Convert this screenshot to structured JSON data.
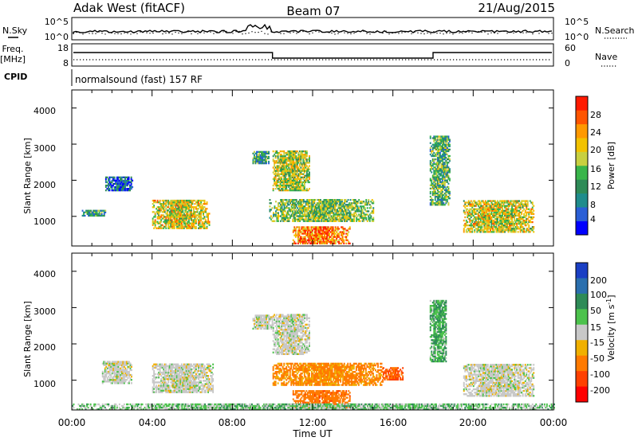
{
  "header": {
    "station": "Adak West (fitACF)",
    "beam": "Beam 07",
    "date": "21/Aug/2015"
  },
  "noise_panel": {
    "left_label": "N.Sky",
    "right_label": "N.Search",
    "left_ticks": [
      "10^5",
      "10^0"
    ],
    "right_ticks": [
      "10^5",
      "10^0"
    ]
  },
  "freq_panel": {
    "left_label_top": "Freq.",
    "left_label_bottom": "[MHz]",
    "right_label": "Nave",
    "left_ticks": [
      "18",
      "8"
    ],
    "right_ticks": [
      "60",
      "0"
    ],
    "cpid_label": "CPID",
    "cpid_text": "normalsound (fast) 157 RF"
  },
  "chart_data": [
    {
      "type": "heatmap",
      "title": "",
      "quantity": "Power",
      "xlabel": "",
      "ylabel": "Slant Range [km]",
      "x_ticks": [
        "00:00",
        "04:00",
        "08:00",
        "12:00",
        "16:00",
        "20:00",
        "00:00"
      ],
      "y_ticks": [
        "1000",
        "2000",
        "3000",
        "4000"
      ],
      "ylim": [
        180,
        4500
      ],
      "colorbar": {
        "label": "Power [dB]",
        "tick_labels": [
          "4",
          "8",
          "12",
          "16",
          "20",
          "24",
          "28"
        ],
        "range": [
          0,
          30
        ],
        "colors": [
          "#0000ff",
          "#2a5fd6",
          "#1f8c8c",
          "#2e8b57",
          "#39b54a",
          "#c8d040",
          "#f2c200",
          "#ff9900",
          "#ff5500",
          "#ff1a00"
        ]
      },
      "echo_regions": [
        {
          "start_ut": "00:30",
          "end_ut": "01:40",
          "range_km": [
            1000,
            1150
          ],
          "value": 10
        },
        {
          "start_ut": "01:40",
          "end_ut": "03:00",
          "range_km": [
            1700,
            2100
          ],
          "value": 6
        },
        {
          "start_ut": "04:00",
          "end_ut": "06:50",
          "range_km": [
            650,
            1450
          ],
          "value": 18
        },
        {
          "start_ut": "09:00",
          "end_ut": "09:50",
          "range_km": [
            2450,
            2800
          ],
          "value": 10
        },
        {
          "start_ut": "10:00",
          "end_ut": "11:50",
          "range_km": [
            1700,
            2800
          ],
          "value": 16
        },
        {
          "start_ut": "09:50",
          "end_ut": "15:00",
          "range_km": [
            850,
            1450
          ],
          "value": 14
        },
        {
          "start_ut": "11:00",
          "end_ut": "13:50",
          "range_km": [
            230,
            700
          ],
          "value": 24
        },
        {
          "start_ut": "17:50",
          "end_ut": "18:50",
          "range_km": [
            1300,
            3200
          ],
          "value": 12
        },
        {
          "start_ut": "19:30",
          "end_ut": "23:00",
          "range_km": [
            550,
            1450
          ],
          "value": 18
        }
      ]
    },
    {
      "type": "heatmap",
      "title": "",
      "quantity": "Velocity",
      "xlabel": "Time UT",
      "ylabel": "Slant Range [km]",
      "x_ticks": [
        "00:00",
        "04:00",
        "08:00",
        "12:00",
        "16:00",
        "20:00",
        "00:00"
      ],
      "y_ticks": [
        "1000",
        "2000",
        "3000",
        "4000"
      ],
      "ylim": [
        180,
        4500
      ],
      "colorbar": {
        "label": "Velocity [m s",
        "label_superscript": "-1",
        "label_close": "]",
        "tick_labels": [
          "200",
          "100",
          "50",
          "15",
          "-15",
          "-50",
          "-100",
          "-200"
        ],
        "colors": [
          "#1a3fc4",
          "#2a6fae",
          "#2e8b57",
          "#4cc24c",
          "#c8c8c8",
          "#f0b000",
          "#ff7a00",
          "#ff4000",
          "#ff0000"
        ]
      },
      "echo_regions": [
        {
          "start_ut": "01:30",
          "end_ut": "03:00",
          "range_km": [
            900,
            1500
          ],
          "value": 0
        },
        {
          "start_ut": "04:00",
          "end_ut": "07:00",
          "range_km": [
            650,
            1450
          ],
          "value": 0
        },
        {
          "start_ut": "09:00",
          "end_ut": "10:00",
          "range_km": [
            2400,
            2800
          ],
          "value": 0
        },
        {
          "start_ut": "10:00",
          "end_ut": "11:50",
          "range_km": [
            1700,
            2800
          ],
          "value": 0
        },
        {
          "start_ut": "10:00",
          "end_ut": "15:30",
          "range_km": [
            850,
            1450
          ],
          "value": -40
        },
        {
          "start_ut": "11:00",
          "end_ut": "13:50",
          "range_km": [
            230,
            700
          ],
          "value": -60
        },
        {
          "start_ut": "15:30",
          "end_ut": "16:30",
          "range_km": [
            1000,
            1350
          ],
          "value": -80
        },
        {
          "start_ut": "17:50",
          "end_ut": "18:40",
          "range_km": [
            1500,
            3200
          ],
          "value": 30
        },
        {
          "start_ut": "19:30",
          "end_ut": "23:00",
          "range_km": [
            550,
            1450
          ],
          "value": 0
        },
        {
          "start_ut": "00:00",
          "end_ut": "24:00",
          "range_km": [
            180,
            320
          ],
          "value": 20
        }
      ]
    }
  ]
}
